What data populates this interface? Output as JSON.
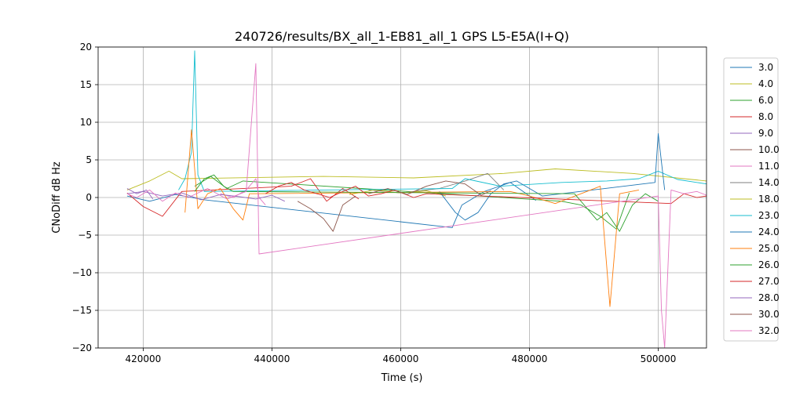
{
  "chart_data": {
    "type": "line",
    "title": "240726/results/BX_all_1-EB81_all_1 GPS L5-E5A(I+Q)",
    "xlabel": "Time (s)",
    "ylabel": "CNoDiff dB Hz",
    "xlim": [
      413000,
      507500
    ],
    "ylim": [
      -20,
      20
    ],
    "x_ticks": [
      420000,
      440000,
      460000,
      480000,
      500000
    ],
    "y_ticks": [
      -20,
      -15,
      -10,
      -5,
      0,
      5,
      10,
      15,
      20
    ],
    "x_tick_labels": [
      "420000",
      "440000",
      "460000",
      "480000",
      "500000"
    ],
    "y_tick_labels": [
      "−20",
      "−15",
      "−10",
      "−5",
      "0",
      "5",
      "10",
      "15",
      "20"
    ],
    "grid": true,
    "legend_position": "outside-right",
    "series": [
      {
        "name": "3.0",
        "color": "#1f77b4",
        "x": [
          417500,
          421000,
          425000,
          429500,
          468000,
          469500,
          473000,
          477000,
          481000
        ],
        "y": [
          0.2,
          -0.5,
          0.4,
          -0.3,
          -4.0,
          -1.0,
          0.8,
          2.0,
          -0.4
        ]
      },
      {
        "name": "4.0",
        "color": "#bcbd22",
        "x": [
          417500,
          421000,
          424000,
          426000,
          448000,
          462000,
          476000,
          484000,
          496000,
          507500
        ],
        "y": [
          1.0,
          2.2,
          3.5,
          2.5,
          2.8,
          2.6,
          3.2,
          3.8,
          3.2,
          2.2
        ]
      },
      {
        "name": "6.0",
        "color": "#2ca02c",
        "x": [
          428000,
          430500,
          433000,
          435500,
          485000,
          488000,
          491000,
          493500,
          495500
        ],
        "y": [
          1.5,
          2.8,
          1.2,
          2.2,
          -0.5,
          -1.0,
          -2.5,
          -4.2,
          0.6
        ]
      },
      {
        "name": "8.0",
        "color": "#d62728",
        "x": [
          417500,
          420000,
          423000,
          426000,
          443000,
          446000,
          448500,
          451000,
          453500
        ],
        "y": [
          0.6,
          -1.2,
          -2.5,
          0.8,
          1.5,
          2.5,
          -0.5,
          1.2,
          -0.2
        ]
      },
      {
        "name": "9.0",
        "color": "#9467bd",
        "x": [
          417500,
          419000,
          420500,
          421500
        ],
        "y": [
          1.2,
          0.5,
          1.0,
          -0.2
        ]
      },
      {
        "name": "10.0",
        "color": "#8c564b",
        "x": [
          444000,
          446000,
          448000,
          449500,
          451000,
          453000
        ],
        "y": [
          -0.5,
          -1.5,
          -2.8,
          -4.5,
          -1.0,
          0.2
        ]
      },
      {
        "name": "11.0",
        "color": "#e377c2",
        "x": [
          432000,
          434000,
          436000,
          437500,
          438000,
          439000
        ],
        "y": [
          0.5,
          0.0,
          1.0,
          2.5,
          0.0,
          -1.0
        ]
      },
      {
        "name": "14.0",
        "color": "#7f7f7f",
        "x": [
          455000,
          460000,
          466000,
          470000,
          473500,
          476000
        ],
        "y": [
          1.0,
          0.6,
          1.2,
          2.2,
          3.2,
          1.0
        ]
      },
      {
        "name": "18.0",
        "color": "#bcbd22",
        "x": [
          452000,
          456000,
          460000,
          464000,
          467000
        ],
        "y": [
          0.4,
          1.0,
          0.6,
          0.9,
          0.2
        ]
      },
      {
        "name": "23.0",
        "color": "#17becf",
        "x": [
          425500,
          426500,
          427500,
          428000,
          428500,
          429500,
          468000,
          470000,
          475500,
          485000,
          492000,
          497000,
          500000,
          503000,
          507500
        ],
        "y": [
          1.0,
          2.5,
          6.0,
          19.5,
          3.0,
          0.8,
          1.2,
          2.5,
          1.5,
          2.0,
          2.2,
          2.5,
          3.5,
          2.4,
          1.8
        ]
      },
      {
        "name": "24.0",
        "color": "#1f77b4",
        "x": [
          466000,
          468500,
          470000,
          472000,
          474000,
          476000,
          478000,
          480000,
          482000,
          499500,
          500000,
          501000
        ],
        "y": [
          0.8,
          -2.0,
          -3.0,
          -2.0,
          0.5,
          1.8,
          2.2,
          1.2,
          0.2,
          2.0,
          8.5,
          1.0
        ]
      },
      {
        "name": "25.0",
        "color": "#ff7f0e",
        "x": [
          426500,
          427500,
          428500,
          430000,
          432000,
          434000,
          435500,
          436500,
          477000,
          480000,
          484000,
          488000,
          491000,
          492500,
          494000,
          497000
        ],
        "y": [
          -2.0,
          9.0,
          -1.5,
          0.5,
          1.2,
          -1.5,
          -3.0,
          0.5,
          0.8,
          0.2,
          -0.8,
          0.5,
          1.5,
          -14.5,
          0.5,
          1.0
        ]
      },
      {
        "name": "26.0",
        "color": "#2ca02c",
        "x": [
          428000,
          429500,
          431000,
          432500,
          434000,
          487000,
          489000,
          490500,
          492000,
          494000,
          496000,
          498000,
          500000
        ],
        "y": [
          0.8,
          2.5,
          3.0,
          1.5,
          0.8,
          0.5,
          -1.5,
          -3.0,
          -2.0,
          -4.5,
          -1.0,
          0.5,
          -0.5
        ]
      },
      {
        "name": "27.0",
        "color": "#d62728",
        "x": [
          439000,
          441000,
          443000,
          445000,
          447000,
          449000,
          451000,
          453000,
          455000,
          457000,
          459000,
          462000,
          464000,
          502000,
          504000,
          506000,
          507500
        ],
        "y": [
          0.5,
          1.5,
          2.0,
          1.0,
          0.5,
          0.0,
          0.8,
          1.5,
          0.2,
          0.5,
          1.0,
          0.0,
          0.5,
          -0.8,
          0.5,
          0.0,
          0.2
        ]
      },
      {
        "name": "28.0",
        "color": "#9467bd",
        "x": [
          417500,
          420000,
          423000,
          426000,
          429000,
          432000,
          435000,
          437500,
          440000,
          442000
        ],
        "y": [
          0.5,
          0.8,
          0.2,
          0.6,
          -0.3,
          0.4,
          0.1,
          -0.2,
          0.3,
          -0.5
        ]
      },
      {
        "name": "30.0",
        "color": "#8c564b",
        "x": [
          455000,
          458000,
          461000,
          464000,
          467000,
          470000,
          472500,
          474000
        ],
        "y": [
          0.5,
          1.2,
          0.4,
          1.5,
          2.2,
          1.8,
          0.3,
          0.9
        ]
      },
      {
        "name": "32.0",
        "color": "#e377c2",
        "x": [
          417500,
          419000,
          421000,
          423000,
          425000,
          427000,
          430000,
          433000,
          436000,
          437500,
          438000,
          500000,
          500500,
          501000,
          502000,
          504000,
          506000,
          507500
        ],
        "y": [
          0.5,
          0.0,
          1.0,
          -0.5,
          0.6,
          0.0,
          1.2,
          -0.2,
          0.8,
          17.8,
          -7.5,
          0.2,
          -15.0,
          -20.0,
          1.0,
          0.5,
          0.8,
          0.3
        ]
      }
    ]
  }
}
